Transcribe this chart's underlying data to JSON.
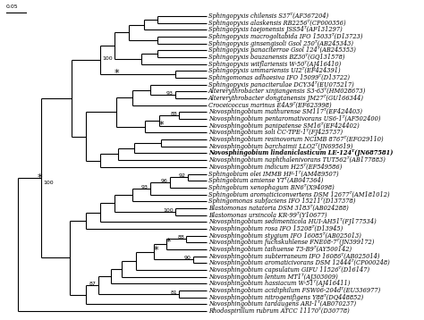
{
  "taxa": [
    "Sphingopyxis chilensis S37ᵀ(AF367204)",
    "Sphingopyxis alaskensis RB2256ᵀ(CP000356)",
    "Sphingopyxis taejonensis JSS54ᵀ(AF131297)",
    "Sphingopyxis macrogoltabida IFO 15033ᵀ(D13723)",
    "Sphingopyxis ginsengisoli Gsol 250ᵀ(AB245343)",
    "Sphingopyxis panaciterrae Gsol 124ᵀ(AB245353)",
    "Sphingopyxis bauzanensis BZ30ᵀ(GQ131578)",
    "Sphingopyxis witflariensis W-50ᵀ(AJ416410)",
    "Sphingopyxis ummariensis UI2ᵀ(EF424391)",
    "Sphingomonas adhaesiva IFO 15099ᵀ(D13722)",
    "Sphingopyxis panaciterulae DCY34ᵀ(EU075217)",
    "Altererythrobacter xinjiangensis S3-63ᵀ(HM028673)",
    "Altererythrobacter dongtanensis JM27ᵀ(GU166344)",
    "Croceicoccus marinus E4A9ᵀ(EF623998)",
    "Novosphingobium mathurense SM117ᵀ(EF424403)",
    "Novosphingobium pentaromativorans US6-1ᵀ(AF502400)",
    "Novosphingobium panipatense SM16ᵀ(EF424402)",
    "Novosphingobium soli CC-TPE-1ᵀ(FJ425737)",
    "Novosphingobium resinovorum NCIMB 8767ᵀ(EFO29110)",
    "Novosphingobium barchaimii LLO2ᵀ(JN695619)",
    "Novosphingobium lindaniclasticum LE-124ᵀ(JN687581)",
    "Novosphingobium naphthalenivorans TUT562ᵀ(AB177883)",
    "Novosphingobium indicum H25ᵀ(EF549586)",
    "Sphingobium olei IMMB HF-1ᵀ(AM489507)",
    "Sphingobium amiense YTᵀ(AB047364)",
    "Sphingobium xenophagum BN6ᵀ(X94098)",
    "Sphingobium aromaticiconvertens DSM 12677ᵀ(AM181012)",
    "Sphingomonas subfaciens IFO 15211ᵀ(D137378)",
    "Blastomonas natatoria DSM 3183ᵀ(AB024288)",
    "Blastomonas ursincola KR-99ᵀ(Y10677)",
    "Novosphingobium sedimenticola HUI-AH51ᵀ(FJ177534)",
    "Novosphingobium rosa IFO 15208ᵀ(D13945)",
    "Novosphingobium stygium IFO 16085ᵀ(AB025013)",
    "Novosphingobium fuchskuhlense FNE08-7ᵀ(JN399172)",
    "Novosphingobium taihuense T3-B9ᵀ(AY500142)",
    "Novosphingobium subterraneum IFO 16086ᵀ(AB025014)",
    "Novosphingobium aromaticivorans DSM 12444ᵀ(CP000248)",
    "Novosphingobium capsulatum GIFU 11526ᵀ(D16147)",
    "Novosphingobium lentum MT1ᵀ(AJ303009)",
    "Novosphingobium hassiacum W-51ᵀ(AJ416411)",
    "Novosphingobium acidiphilum FSW06-204dᵀ(EU336977)",
    "Novosphingobium nitrogenifigens Y88ᵀ(DQ448852)",
    "Novosphingobium tardaugens ARI-1ᵀ(AB070237)",
    "Rhodospirillum rubrum ATCC 11170ᵀ(D30778)"
  ],
  "bold_taxon_index": 20,
  "scale_bar_value": "0.05",
  "background_color": "#ffffff",
  "line_color": "#000000",
  "text_color": "#000000",
  "leaf_fontsize": 4.8,
  "bootstrap_fontsize": 4.5,
  "lw": 0.8,
  "star_fontsize": 8
}
